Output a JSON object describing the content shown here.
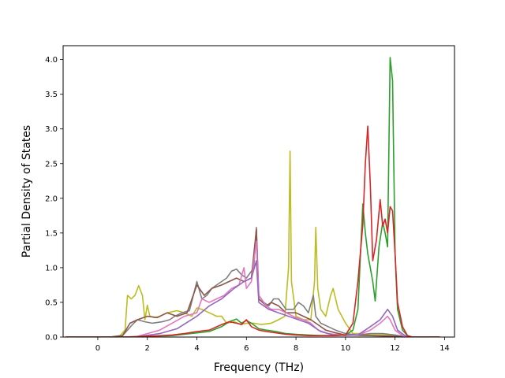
{
  "chart_data": {
    "type": "line",
    "title": "",
    "xlabel": "Frequency (THz)",
    "ylabel": "Partial Density of States",
    "xlim": [
      -1.4,
      14.4
    ],
    "ylim": [
      0,
      4.2
    ],
    "xticks": [
      0,
      2,
      4,
      6,
      8,
      10,
      12,
      14
    ],
    "yticks": [
      0.0,
      0.5,
      1.0,
      1.5,
      2.0,
      2.5,
      3.0,
      3.5,
      4.0
    ],
    "xtick_labels": [
      "0",
      "2",
      "4",
      "6",
      "8",
      "10",
      "12",
      "14"
    ],
    "ytick_labels": [
      "0.0",
      "0.5",
      "1.0",
      "1.5",
      "2.0",
      "2.5",
      "3.0",
      "3.5",
      "4.0"
    ],
    "grid": false,
    "legend": "none",
    "series": [
      {
        "color": "#bcbd22",
        "points": [
          [
            -1.3,
            0
          ],
          [
            0.5,
            0
          ],
          [
            0.9,
            0.02
          ],
          [
            1.1,
            0.1
          ],
          [
            1.2,
            0.6
          ],
          [
            1.35,
            0.55
          ],
          [
            1.5,
            0.6
          ],
          [
            1.65,
            0.74
          ],
          [
            1.8,
            0.6
          ],
          [
            1.9,
            0.25
          ],
          [
            2.0,
            0.46
          ],
          [
            2.1,
            0.3
          ],
          [
            2.3,
            0.28
          ],
          [
            2.5,
            0.3
          ],
          [
            2.8,
            0.35
          ],
          [
            3.2,
            0.38
          ],
          [
            3.5,
            0.35
          ],
          [
            3.8,
            0.3
          ],
          [
            4.0,
            0.42
          ],
          [
            4.2,
            0.4
          ],
          [
            4.5,
            0.35
          ],
          [
            4.8,
            0.3
          ],
          [
            5.0,
            0.3
          ],
          [
            5.2,
            0.2
          ],
          [
            5.5,
            0.22
          ],
          [
            5.8,
            0.18
          ],
          [
            6.0,
            0.2
          ],
          [
            6.3,
            0.2
          ],
          [
            6.6,
            0.18
          ],
          [
            7.0,
            0.2
          ],
          [
            7.3,
            0.25
          ],
          [
            7.55,
            0.3
          ],
          [
            7.7,
            1.0
          ],
          [
            7.76,
            2.68
          ],
          [
            7.82,
            0.8
          ],
          [
            8.0,
            0.3
          ],
          [
            8.3,
            0.25
          ],
          [
            8.6,
            0.25
          ],
          [
            8.75,
            0.8
          ],
          [
            8.8,
            1.58
          ],
          [
            8.88,
            0.7
          ],
          [
            9.0,
            0.4
          ],
          [
            9.2,
            0.3
          ],
          [
            9.4,
            0.6
          ],
          [
            9.5,
            0.7
          ],
          [
            9.7,
            0.4
          ],
          [
            10.0,
            0.2
          ],
          [
            10.3,
            0.05
          ],
          [
            10.6,
            0.05
          ],
          [
            11.0,
            0.03
          ],
          [
            11.5,
            0.03
          ],
          [
            12.0,
            0.02
          ],
          [
            12.5,
            0
          ],
          [
            13.8,
            0
          ]
        ]
      },
      {
        "color": "#7f7f7f",
        "points": [
          [
            -1.3,
            0
          ],
          [
            0.5,
            0
          ],
          [
            1.0,
            0.02
          ],
          [
            1.2,
            0.1
          ],
          [
            1.4,
            0.18
          ],
          [
            1.6,
            0.25
          ],
          [
            1.9,
            0.22
          ],
          [
            2.2,
            0.2
          ],
          [
            2.6,
            0.22
          ],
          [
            2.9,
            0.25
          ],
          [
            3.1,
            0.3
          ],
          [
            3.4,
            0.35
          ],
          [
            3.7,
            0.38
          ],
          [
            4.0,
            0.8
          ],
          [
            4.2,
            0.55
          ],
          [
            4.4,
            0.6
          ],
          [
            4.6,
            0.7
          ],
          [
            4.8,
            0.75
          ],
          [
            5.0,
            0.8
          ],
          [
            5.2,
            0.85
          ],
          [
            5.4,
            0.95
          ],
          [
            5.6,
            0.98
          ],
          [
            5.8,
            0.9
          ],
          [
            6.0,
            0.85
          ],
          [
            6.2,
            0.95
          ],
          [
            6.3,
            1.0
          ],
          [
            6.4,
            1.58
          ],
          [
            6.5,
            0.6
          ],
          [
            6.7,
            0.5
          ],
          [
            6.9,
            0.45
          ],
          [
            7.1,
            0.55
          ],
          [
            7.3,
            0.55
          ],
          [
            7.6,
            0.4
          ],
          [
            7.9,
            0.4
          ],
          [
            8.1,
            0.5
          ],
          [
            8.3,
            0.45
          ],
          [
            8.5,
            0.35
          ],
          [
            8.7,
            0.6
          ],
          [
            8.8,
            0.3
          ],
          [
            9.0,
            0.2
          ],
          [
            9.3,
            0.15
          ],
          [
            9.6,
            0.1
          ],
          [
            10.0,
            0.05
          ],
          [
            10.5,
            0.03
          ],
          [
            11.0,
            0.05
          ],
          [
            11.5,
            0.05
          ],
          [
            12.0,
            0.03
          ],
          [
            12.5,
            0
          ],
          [
            13.8,
            0
          ]
        ]
      },
      {
        "color": "#8c564b",
        "points": [
          [
            -1.3,
            0
          ],
          [
            0.5,
            0
          ],
          [
            1.0,
            0.02
          ],
          [
            1.3,
            0.2
          ],
          [
            1.6,
            0.25
          ],
          [
            2.0,
            0.3
          ],
          [
            2.4,
            0.28
          ],
          [
            2.8,
            0.35
          ],
          [
            3.2,
            0.3
          ],
          [
            3.6,
            0.35
          ],
          [
            4.0,
            0.75
          ],
          [
            4.3,
            0.6
          ],
          [
            4.6,
            0.7
          ],
          [
            5.0,
            0.75
          ],
          [
            5.3,
            0.8
          ],
          [
            5.6,
            0.85
          ],
          [
            5.9,
            0.8
          ],
          [
            6.2,
            0.85
          ],
          [
            6.4,
            1.55
          ],
          [
            6.5,
            0.55
          ],
          [
            6.8,
            0.45
          ],
          [
            7.0,
            0.5
          ],
          [
            7.3,
            0.45
          ],
          [
            7.6,
            0.35
          ],
          [
            8.0,
            0.35
          ],
          [
            8.3,
            0.3
          ],
          [
            8.6,
            0.25
          ],
          [
            8.8,
            0.2
          ],
          [
            9.2,
            0.1
          ],
          [
            9.6,
            0.06
          ],
          [
            10.0,
            0.03
          ],
          [
            11.0,
            0.02
          ],
          [
            12.0,
            0.01
          ],
          [
            12.5,
            0
          ],
          [
            13.8,
            0
          ]
        ]
      },
      {
        "color": "#e377c2",
        "points": [
          [
            -1.3,
            0
          ],
          [
            0.5,
            0
          ],
          [
            1.5,
            0
          ],
          [
            2.0,
            0.05
          ],
          [
            2.5,
            0.1
          ],
          [
            3.0,
            0.2
          ],
          [
            3.5,
            0.3
          ],
          [
            4.0,
            0.35
          ],
          [
            4.2,
            0.55
          ],
          [
            4.5,
            0.5
          ],
          [
            4.8,
            0.55
          ],
          [
            5.1,
            0.6
          ],
          [
            5.4,
            0.7
          ],
          [
            5.7,
            0.75
          ],
          [
            5.9,
            1.0
          ],
          [
            6.0,
            0.7
          ],
          [
            6.2,
            0.8
          ],
          [
            6.4,
            1.38
          ],
          [
            6.5,
            0.6
          ],
          [
            6.8,
            0.45
          ],
          [
            7.0,
            0.4
          ],
          [
            7.3,
            0.4
          ],
          [
            7.6,
            0.35
          ],
          [
            8.0,
            0.28
          ],
          [
            8.3,
            0.25
          ],
          [
            8.6,
            0.2
          ],
          [
            8.9,
            0.1
          ],
          [
            9.3,
            0.05
          ],
          [
            10.0,
            0.02
          ],
          [
            10.5,
            0.03
          ],
          [
            11.0,
            0.1
          ],
          [
            11.4,
            0.2
          ],
          [
            11.7,
            0.3
          ],
          [
            11.8,
            0.25
          ],
          [
            12.0,
            0.1
          ],
          [
            12.3,
            0.02
          ],
          [
            12.5,
            0
          ],
          [
            13.8,
            0
          ]
        ]
      },
      {
        "color": "#9467bd",
        "points": [
          [
            -1.3,
            0
          ],
          [
            1.5,
            0
          ],
          [
            2.5,
            0.05
          ],
          [
            3.2,
            0.12
          ],
          [
            4.0,
            0.3
          ],
          [
            4.5,
            0.45
          ],
          [
            5.0,
            0.55
          ],
          [
            5.5,
            0.7
          ],
          [
            5.9,
            0.8
          ],
          [
            6.2,
            0.85
          ],
          [
            6.4,
            1.1
          ],
          [
            6.5,
            0.5
          ],
          [
            6.9,
            0.4
          ],
          [
            7.3,
            0.35
          ],
          [
            7.7,
            0.3
          ],
          [
            8.1,
            0.25
          ],
          [
            8.5,
            0.2
          ],
          [
            9.0,
            0.08
          ],
          [
            9.5,
            0.03
          ],
          [
            10.5,
            0.03
          ],
          [
            11.0,
            0.15
          ],
          [
            11.4,
            0.25
          ],
          [
            11.7,
            0.4
          ],
          [
            11.9,
            0.3
          ],
          [
            12.1,
            0.1
          ],
          [
            12.4,
            0.02
          ],
          [
            12.6,
            0
          ],
          [
            13.8,
            0
          ]
        ]
      },
      {
        "color": "#2ca02c",
        "points": [
          [
            -1.3,
            0
          ],
          [
            1.0,
            0
          ],
          [
            2.0,
            0.01
          ],
          [
            3.0,
            0.02
          ],
          [
            3.5,
            0.04
          ],
          [
            4.0,
            0.06
          ],
          [
            4.5,
            0.08
          ],
          [
            5.0,
            0.15
          ],
          [
            5.3,
            0.22
          ],
          [
            5.6,
            0.26
          ],
          [
            5.8,
            0.2
          ],
          [
            6.0,
            0.24
          ],
          [
            6.2,
            0.2
          ],
          [
            6.5,
            0.12
          ],
          [
            6.8,
            0.1
          ],
          [
            7.2,
            0.08
          ],
          [
            7.6,
            0.05
          ],
          [
            8.0,
            0.04
          ],
          [
            8.5,
            0.03
          ],
          [
            9.0,
            0.02
          ],
          [
            9.5,
            0.02
          ],
          [
            10.0,
            0.03
          ],
          [
            10.3,
            0.1
          ],
          [
            10.5,
            0.4
          ],
          [
            10.7,
            1.92
          ],
          [
            10.8,
            1.5
          ],
          [
            10.9,
            1.2
          ],
          [
            11.1,
            0.8
          ],
          [
            11.2,
            0.52
          ],
          [
            11.35,
            1.3
          ],
          [
            11.5,
            1.65
          ],
          [
            11.6,
            1.5
          ],
          [
            11.7,
            1.3
          ],
          [
            11.8,
            4.03
          ],
          [
            11.9,
            3.7
          ],
          [
            12.0,
            1.2
          ],
          [
            12.1,
            0.4
          ],
          [
            12.3,
            0.1
          ],
          [
            12.5,
            0.02
          ],
          [
            12.7,
            0
          ],
          [
            13.8,
            0
          ]
        ]
      },
      {
        "color": "#d62728",
        "points": [
          [
            -1.3,
            0
          ],
          [
            1.0,
            0
          ],
          [
            2.0,
            0.01
          ],
          [
            3.0,
            0.03
          ],
          [
            3.5,
            0.05
          ],
          [
            4.0,
            0.08
          ],
          [
            4.5,
            0.1
          ],
          [
            5.0,
            0.18
          ],
          [
            5.3,
            0.22
          ],
          [
            5.6,
            0.2
          ],
          [
            5.8,
            0.18
          ],
          [
            6.0,
            0.25
          ],
          [
            6.2,
            0.15
          ],
          [
            6.5,
            0.1
          ],
          [
            6.8,
            0.08
          ],
          [
            7.2,
            0.06
          ],
          [
            7.6,
            0.04
          ],
          [
            8.0,
            0.03
          ],
          [
            8.5,
            0.02
          ],
          [
            9.0,
            0.02
          ],
          [
            9.5,
            0.02
          ],
          [
            10.0,
            0.03
          ],
          [
            10.3,
            0.2
          ],
          [
            10.5,
            0.8
          ],
          [
            10.7,
            1.62
          ],
          [
            10.8,
            2.5
          ],
          [
            10.9,
            3.04
          ],
          [
            11.0,
            2.2
          ],
          [
            11.1,
            1.1
          ],
          [
            11.25,
            1.4
          ],
          [
            11.4,
            1.98
          ],
          [
            11.5,
            1.6
          ],
          [
            11.6,
            1.7
          ],
          [
            11.7,
            1.5
          ],
          [
            11.8,
            1.88
          ],
          [
            11.9,
            1.82
          ],
          [
            12.0,
            1.2
          ],
          [
            12.1,
            0.5
          ],
          [
            12.3,
            0.15
          ],
          [
            12.5,
            0.02
          ],
          [
            12.7,
            0
          ],
          [
            13.8,
            0
          ]
        ]
      }
    ]
  }
}
